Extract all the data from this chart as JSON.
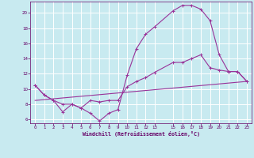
{
  "background_color": "#c8eaf0",
  "grid_color": "#ffffff",
  "line_color": "#993399",
  "xlabel": "Windchill (Refroidissement éolien,°C)",
  "xlim": [
    -0.5,
    23.5
  ],
  "ylim": [
    5.5,
    21.5
  ],
  "yticks": [
    6,
    8,
    10,
    12,
    14,
    16,
    18,
    20
  ],
  "xticks": [
    0,
    1,
    2,
    3,
    4,
    5,
    6,
    7,
    8,
    9,
    10,
    11,
    12,
    13,
    15,
    16,
    17,
    18,
    19,
    20,
    21,
    22,
    23
  ],
  "line1_x": [
    0,
    1,
    2,
    3,
    4,
    5,
    6,
    7,
    8,
    9,
    10,
    11,
    12,
    13,
    15,
    16,
    17,
    18,
    19,
    20,
    21,
    22,
    23
  ],
  "line1_y": [
    10.5,
    9.2,
    8.5,
    7.0,
    8.0,
    7.5,
    6.8,
    5.8,
    6.8,
    7.3,
    11.8,
    15.3,
    17.2,
    18.2,
    20.3,
    21.0,
    21.0,
    20.5,
    19.0,
    14.5,
    12.3,
    12.3,
    11.0
  ],
  "line2_x": [
    0,
    1,
    2,
    3,
    4,
    5,
    6,
    7,
    8,
    9,
    10,
    11,
    12,
    13,
    15,
    16,
    17,
    18,
    19,
    20,
    21,
    22,
    23
  ],
  "line2_y": [
    10.5,
    9.2,
    8.5,
    8.0,
    8.0,
    7.5,
    8.5,
    8.3,
    8.5,
    8.5,
    10.3,
    11.0,
    11.5,
    12.2,
    13.5,
    13.5,
    14.0,
    14.5,
    12.8,
    12.5,
    12.3,
    12.3,
    11.0
  ],
  "line3_x": [
    0,
    23
  ],
  "line3_y": [
    8.5,
    11.0
  ]
}
